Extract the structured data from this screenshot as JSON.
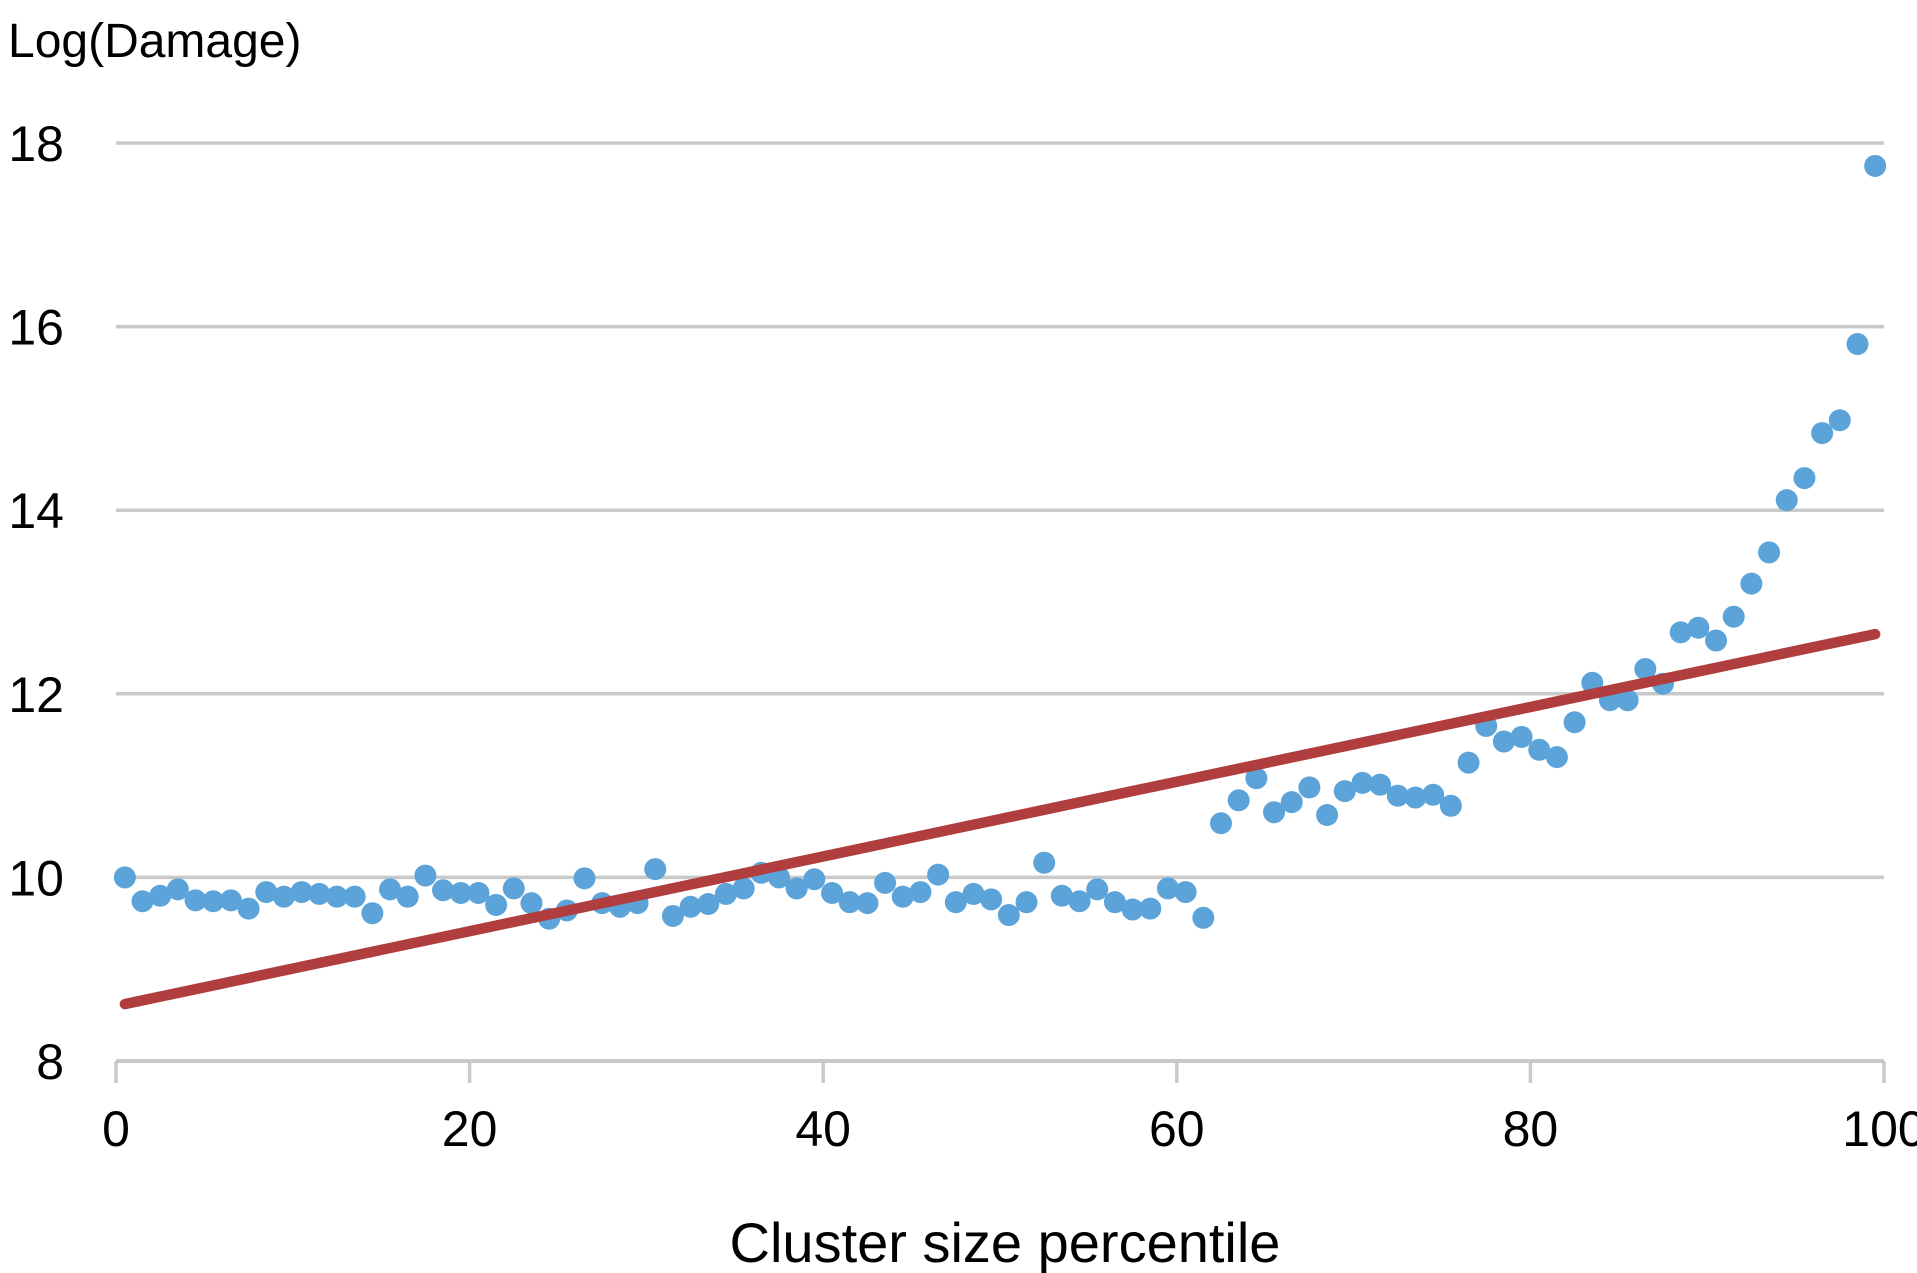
{
  "chart_data": {
    "type": "scatter",
    "title": "Log(Damage)",
    "xlabel": "Cluster size percentile",
    "ylabel": "Log(Damage)",
    "xlim": [
      0,
      100
    ],
    "ylim": [
      8,
      18
    ],
    "x_ticks": [
      0,
      20,
      40,
      60,
      80,
      100
    ],
    "y_ticks": [
      8,
      10,
      12,
      14,
      16,
      18
    ],
    "grid": "horizontal-gridlines-at-y-ticks-above-8",
    "legend": "none",
    "points": {
      "x_start": 0.5,
      "x_step": 1,
      "y": [
        10.0,
        9.74,
        9.8,
        9.87,
        9.75,
        9.74,
        9.75,
        9.66,
        9.84,
        9.79,
        9.84,
        9.82,
        9.79,
        9.79,
        9.61,
        9.87,
        9.79,
        10.02,
        9.86,
        9.83,
        9.83,
        9.7,
        9.88,
        9.72,
        9.55,
        9.64,
        9.99,
        9.72,
        9.68,
        9.72,
        10.09,
        9.58,
        9.68,
        9.71,
        9.82,
        9.88,
        10.05,
        10.0,
        9.88,
        9.98,
        9.83,
        9.73,
        9.72,
        9.94,
        9.79,
        9.84,
        10.03,
        9.73,
        9.82,
        9.76,
        9.59,
        9.73,
        10.16,
        9.8,
        9.74,
        9.87,
        9.73,
        9.65,
        9.66,
        9.88,
        9.84,
        9.56,
        10.59,
        10.84,
        11.08,
        10.71,
        10.82,
        10.98,
        10.68,
        10.94,
        11.03,
        11.01,
        10.89,
        10.87,
        10.9,
        10.78,
        11.25,
        11.65,
        11.48,
        11.53,
        11.39,
        11.31,
        11.69,
        12.12,
        11.93,
        11.93,
        12.27,
        12.11,
        12.67,
        12.72,
        12.58,
        12.84,
        13.2,
        13.54,
        14.11,
        14.35,
        14.84,
        14.98,
        15.81,
        17.75
      ]
    },
    "trend_line": {
      "name": "regression-line",
      "x": [
        0.5,
        99.5
      ],
      "y": [
        8.62,
        12.65
      ]
    },
    "colors": {
      "dot": "#5BA3D9",
      "trend": "#B13E3E",
      "grid": "#C9C9C9",
      "text": "#000000"
    }
  }
}
